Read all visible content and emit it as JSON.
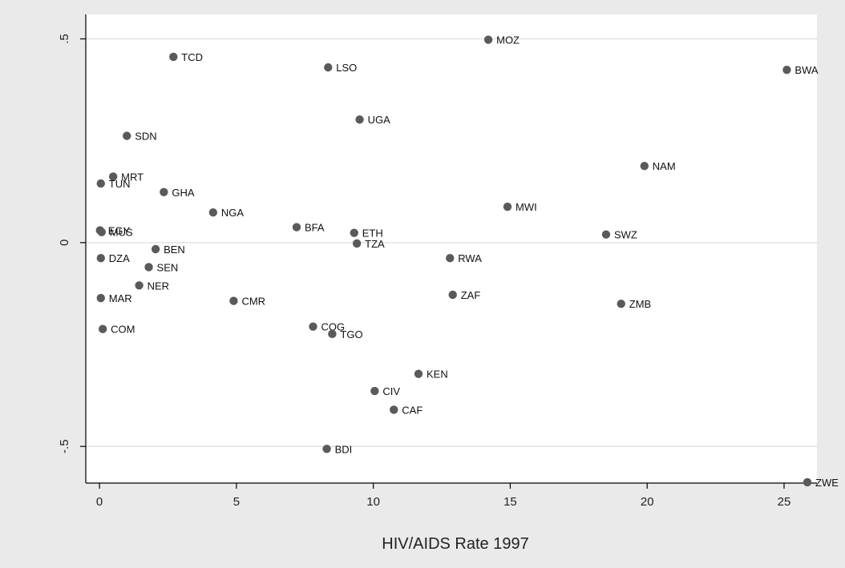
{
  "chart_data": {
    "type": "scatter",
    "title": "",
    "xlabel": "HIV/AIDS Rate 1997",
    "ylabel": "",
    "xlim": [
      -0.5,
      26.2
    ],
    "ylim": [
      -0.59,
      0.56
    ],
    "xticks": [
      0,
      5,
      10,
      15,
      20,
      25
    ],
    "xtick_labels": [
      "0",
      "5",
      "10",
      "15",
      "20",
      "25"
    ],
    "yticks": [
      -0.5,
      0,
      0.5
    ],
    "ytick_labels": [
      "-.5",
      "0",
      ".5"
    ],
    "grid": true,
    "legend": "none",
    "colors": {
      "marker": "#5a5a5a",
      "gridline": "#e2e2e2",
      "plot_bg": "#ffffff",
      "outer_bg": "#eaeaea"
    },
    "points": [
      {
        "label": "MOZ",
        "x": 14.2,
        "y": 0.498
      },
      {
        "label": "TCD",
        "x": 2.7,
        "y": 0.456
      },
      {
        "label": "LSO",
        "x": 8.35,
        "y": 0.43
      },
      {
        "label": "BWA",
        "x": 25.1,
        "y": 0.424
      },
      {
        "label": "UGA",
        "x": 9.5,
        "y": 0.302
      },
      {
        "label": "SDN",
        "x": 1.0,
        "y": 0.262
      },
      {
        "label": "NAM",
        "x": 19.9,
        "y": 0.188
      },
      {
        "label": "MRT",
        "x": 0.5,
        "y": 0.162
      },
      {
        "label": "TUN",
        "x": 0.05,
        "y": 0.145
      },
      {
        "label": "GHA",
        "x": 2.35,
        "y": 0.124
      },
      {
        "label": "MWI",
        "x": 14.9,
        "y": 0.088
      },
      {
        "label": "NGA",
        "x": 4.15,
        "y": 0.074
      },
      {
        "label": "BFA",
        "x": 7.2,
        "y": 0.038
      },
      {
        "label": "EGY",
        "x": 0.02,
        "y": 0.03
      },
      {
        "label": "MUS",
        "x": 0.08,
        "y": 0.026
      },
      {
        "label": "ETH",
        "x": 9.3,
        "y": 0.024
      },
      {
        "label": "SWZ",
        "x": 18.5,
        "y": 0.02
      },
      {
        "label": "TZA",
        "x": 9.4,
        "y": -0.002
      },
      {
        "label": "BEN",
        "x": 2.05,
        "y": -0.016
      },
      {
        "label": "DZA",
        "x": 0.05,
        "y": -0.038
      },
      {
        "label": "RWA",
        "x": 12.8,
        "y": -0.038
      },
      {
        "label": "SEN",
        "x": 1.8,
        "y": -0.06
      },
      {
        "label": "NER",
        "x": 1.45,
        "y": -0.105
      },
      {
        "label": "ZAF",
        "x": 12.9,
        "y": -0.128
      },
      {
        "label": "MAR",
        "x": 0.05,
        "y": -0.136
      },
      {
        "label": "CMR",
        "x": 4.9,
        "y": -0.143
      },
      {
        "label": "ZMB",
        "x": 19.05,
        "y": -0.15
      },
      {
        "label": "COG",
        "x": 7.8,
        "y": -0.206
      },
      {
        "label": "COM",
        "x": 0.12,
        "y": -0.212
      },
      {
        "label": "TGO",
        "x": 8.5,
        "y": -0.224
      },
      {
        "label": "KEN",
        "x": 11.65,
        "y": -0.322
      },
      {
        "label": "CIV",
        "x": 10.05,
        "y": -0.364
      },
      {
        "label": "CAF",
        "x": 10.75,
        "y": -0.41
      },
      {
        "label": "BDI",
        "x": 8.3,
        "y": -0.506
      },
      {
        "label": "ZWE",
        "x": 25.85,
        "y": -0.588
      }
    ]
  }
}
